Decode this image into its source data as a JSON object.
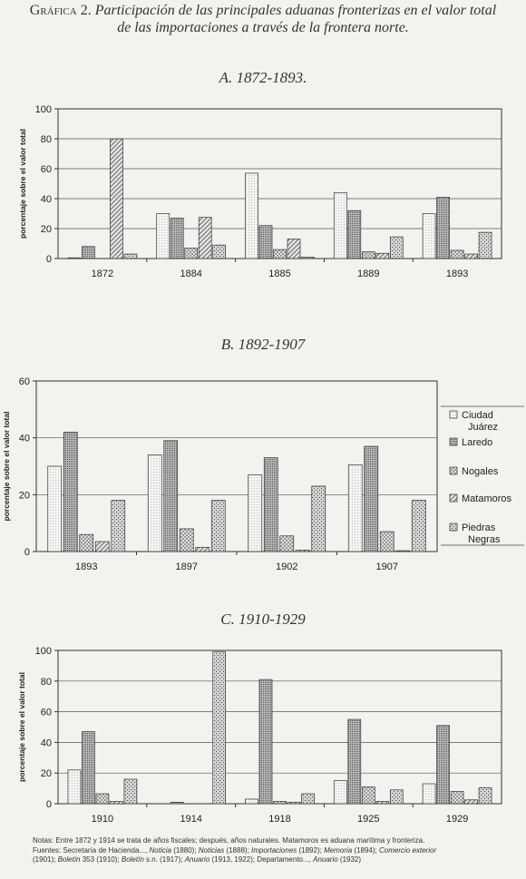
{
  "figure": {
    "title_lead": "Gráfica 2.",
    "title_line1": "Participación de las principales aduanas fronterizas en el valor total",
    "title_line2": "de las importaciones a través de la frontera norte."
  },
  "ylabel": "porcentaje sobre el valor total",
  "legend": [
    "Ciudad Juárez",
    "Laredo",
    "Nogales",
    "Matamoros",
    "Piedras Negras"
  ],
  "colors": {
    "background": "#f3f2ee",
    "Ciudad Juárez": "#f4f4f2",
    "Laredo": "#b9b9b9",
    "Nogales": "#eaeaea",
    "Matamoros": "#e2e2e2",
    "Piedras Negras": "#d6d6d6"
  },
  "chart_data": [
    {
      "type": "bar",
      "title": "A. 1872-1893.",
      "ylabel": "porcentaje sobre el valor total",
      "ylim": [
        0,
        100
      ],
      "yticks": [
        0,
        20,
        40,
        60,
        80,
        100
      ],
      "grid": true,
      "categories": [
        "1872",
        "1884",
        "1885",
        "1889",
        "1893"
      ],
      "series": [
        {
          "name": "Ciudad Juárez",
          "values": [
            0.5,
            30,
            57,
            44,
            30
          ]
        },
        {
          "name": "Laredo",
          "values": [
            8,
            27,
            22,
            32,
            41
          ]
        },
        {
          "name": "Nogales",
          "values": [
            null,
            7,
            6,
            4.5,
            5.5
          ]
        },
        {
          "name": "Matamoros",
          "values": [
            80,
            27.5,
            13,
            3.5,
            3
          ]
        },
        {
          "name": "Piedras Negras",
          "values": [
            3,
            9,
            1,
            14.5,
            17.5
          ]
        }
      ]
    },
    {
      "type": "bar",
      "title": "B. 1892-1907",
      "ylabel": "porcentaje sobre el valor total",
      "ylim": [
        0,
        60
      ],
      "yticks": [
        0,
        20,
        40,
        60
      ],
      "grid": true,
      "legend_position": "right",
      "categories": [
        "1893",
        "1897",
        "1902",
        "1907"
      ],
      "series": [
        {
          "name": "Ciudad Juárez",
          "values": [
            30,
            34,
            27,
            30.5
          ]
        },
        {
          "name": "Laredo",
          "values": [
            42,
            39,
            33,
            37
          ]
        },
        {
          "name": "Nogales",
          "values": [
            6,
            8,
            5.5,
            7
          ]
        },
        {
          "name": "Matamoros",
          "values": [
            3.5,
            1.5,
            0.5,
            0.3
          ]
        },
        {
          "name": "Piedras Negras",
          "values": [
            18,
            18,
            23,
            18
          ]
        }
      ]
    },
    {
      "type": "bar",
      "title": "C. 1910-1929",
      "ylabel": "porcentaje sobre el valor total",
      "ylim": [
        0,
        100
      ],
      "yticks": [
        0,
        20,
        40,
        60,
        80,
        100
      ],
      "grid": true,
      "categories": [
        "1910",
        "1914",
        "1918",
        "1925",
        "1929"
      ],
      "series": [
        {
          "name": "Ciudad Juárez",
          "values": [
            22,
            null,
            3,
            15,
            13
          ]
        },
        {
          "name": "Laredo",
          "values": [
            47,
            1,
            81,
            55,
            51
          ]
        },
        {
          "name": "Nogales",
          "values": [
            6.5,
            null,
            1.5,
            11,
            8
          ]
        },
        {
          "name": "Matamoros",
          "values": [
            1.5,
            null,
            1,
            1.5,
            2.5
          ]
        },
        {
          "name": "Piedras Negras",
          "values": [
            16,
            99,
            6.5,
            9,
            10.5
          ]
        }
      ]
    }
  ],
  "notes": {
    "line1": "Notas: Entre 1872 y 1914 se trata de años fiscales; después, años naturales. Matamoros es aduana marítima y fronteriza.",
    "line2_a": "Fuentes: Secretaría de Hacienda..., ",
    "line2_b": "Noticia",
    "line2_c": " (1880); ",
    "line2_d": "Noticias",
    "line2_e": " (1888); ",
    "line2_f": "Importaciones",
    "line2_g": " (1892); ",
    "line2_h": "Memoria",
    "line2_i": " (1894); ",
    "line2_j": "Comercio exterior",
    "line3_a": "(1901); ",
    "line3_b": "Boletín",
    "line3_c": " 353 (1910); ",
    "line3_d": "Boletín",
    "line3_e": " s.n. (1917); ",
    "line3_f": "Anuario",
    "line3_g": " (1913, 1922); Departamento..., ",
    "line3_h": "Anuario",
    "line3_i": " (1932)"
  }
}
